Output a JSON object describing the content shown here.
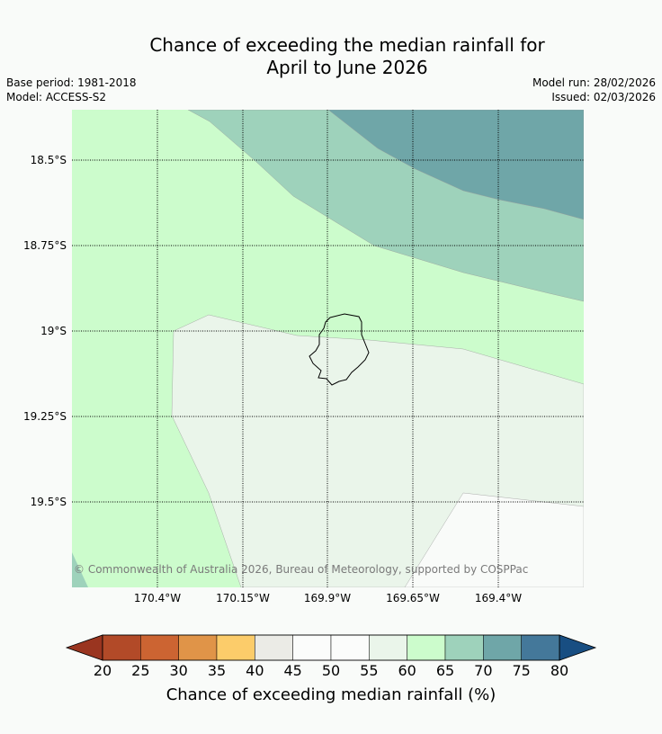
{
  "title_line1": "Chance of exceeding the median rainfall for",
  "title_line2": "April to June 2026",
  "base_period": "Base period: 1981-2018",
  "model": "Model: ACCESS-S2",
  "model_run": "Model run: 28/02/2026",
  "issued": "Issued: 02/03/2026",
  "latitude_labels": [
    "18.5°S",
    "18.75°S",
    "19°S",
    "19.25°S",
    "19.5°S"
  ],
  "longitude_labels": [
    "170.4°W",
    "170.15°W",
    "169.9°W",
    "169.65°W",
    "169.4°W"
  ],
  "copyright": "© Commonwealth of Australia 2026, Bureau of Meteorology, supported by COSPPac",
  "colorbar": {
    "ticks": [
      "20",
      "25",
      "30",
      "35",
      "40",
      "45",
      "50",
      "55",
      "60",
      "65",
      "70",
      "75",
      "80"
    ],
    "colors": [
      "#b24a28",
      "#cc6432",
      "#e09448",
      "#fccc6a",
      "#ebebe6",
      "#fbfcfb",
      "#fbfcfb",
      "#eaf5ea",
      "#ccfccc",
      "#9ed2bb",
      "#6fa6a8",
      "#44789a"
    ],
    "low_extend_color": "#9a3520",
    "high_extend_color": "#184e82",
    "label": "Chance of exceeding median rainfall (%)"
  },
  "region_colors": {
    "base": "#ccfccc",
    "band_65_70": "#9ed2bb",
    "band_70_75": "#6fa6a8",
    "band_55_60": "#eaf5ea",
    "band_50_55": "#f9fbf9"
  }
}
